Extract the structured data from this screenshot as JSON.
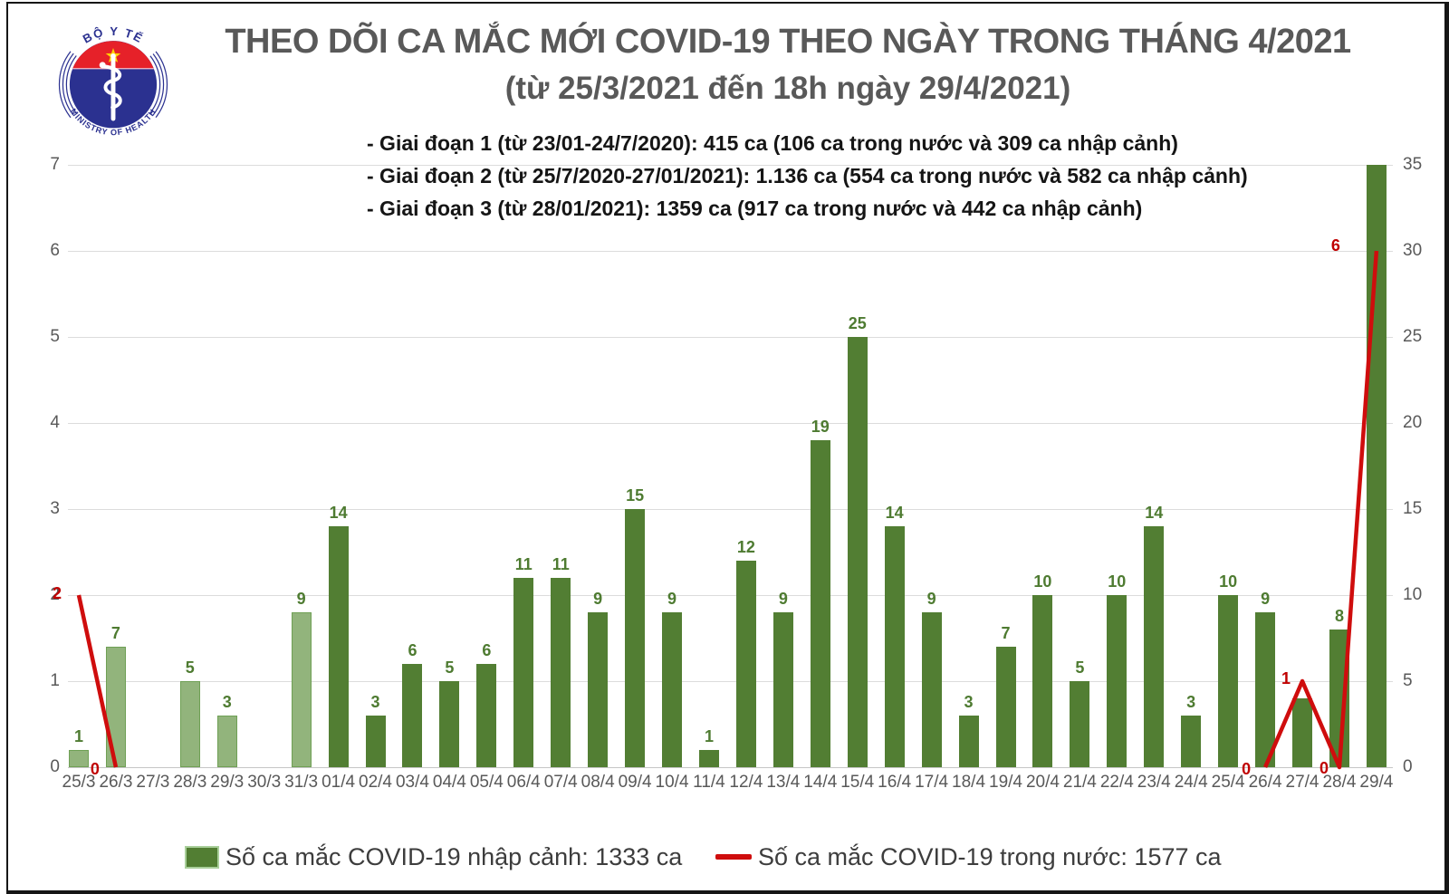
{
  "header": {
    "title": "THEO DÕI CA MẮC MỚI COVID-19 THEO NGÀY TRONG THÁNG 4/2021",
    "subtitle": "(từ 25/3/2021 đến 18h ngày 29/4/2021)",
    "logo": {
      "top_text": "BỘ Y TẾ",
      "bottom_text": "MINISTRY OF HEALTH"
    }
  },
  "annotations": [
    "- Giai đoạn 1 (từ 23/01-24/7/2020): 415 ca (106 ca trong nước và 309 ca nhập cảnh)",
    "- Giai đoạn 2 (từ 25/7/2020-27/01/2021): 1.136 ca (554 ca trong nước và 582 ca nhập cảnh)",
    "- Giai đoạn 3 (từ 28/01/2021): 1359 ca (917 ca trong nước và 442 ca nhập cảnh)"
  ],
  "legend": [
    {
      "label": "Số ca mắc COVID-19 nhập cảnh: 1333 ca",
      "marker": "bar",
      "color": "#527e33"
    },
    {
      "label": "Số ca mắc COVID-19 trong nước: 1577 ca",
      "marker": "line",
      "color": "#cf0d0d"
    }
  ],
  "chart_data": {
    "type": "bar+line",
    "title": "THEO DÕI CA MẮC MỚI COVID-19 THEO NGÀY TRONG THÁNG 4/2021",
    "categories": [
      "25/3",
      "26/3",
      "27/3",
      "28/3",
      "29/3",
      "30/3",
      "31/3",
      "01/4",
      "02/4",
      "03/4",
      "04/4",
      "05/4",
      "06/4",
      "07/4",
      "08/4",
      "09/4",
      "10/4",
      "11/4",
      "12/4",
      "13/4",
      "14/4",
      "15/4",
      "16/4",
      "17/4",
      "18/4",
      "19/4",
      "20/4",
      "21/4",
      "22/4",
      "23/4",
      "24/4",
      "25/4",
      "26/4",
      "27/4",
      "28/4",
      "29/4"
    ],
    "grid": true,
    "legend_position": "bottom",
    "left_axis": {
      "min": 0,
      "max": 7,
      "ticks": [
        "0",
        "1",
        "2",
        "3",
        "4",
        "5",
        "6",
        "7"
      ]
    },
    "right_axis": {
      "min": 0,
      "max": 35,
      "ticks": [
        "0",
        "5",
        "10",
        "15",
        "20",
        "25",
        "30",
        "35"
      ]
    },
    "series": [
      {
        "name": "Số ca mắc COVID-19 nhập cảnh",
        "type": "bar",
        "axis": "right",
        "color_dark": "#527e33",
        "color_light": "#92b47c",
        "light_count": 7,
        "values": [
          1,
          7,
          null,
          5,
          3,
          null,
          9,
          14,
          3,
          6,
          5,
          6,
          11,
          11,
          9,
          15,
          9,
          1,
          12,
          9,
          19,
          25,
          14,
          9,
          3,
          7,
          10,
          5,
          10,
          14,
          3,
          10,
          9,
          4,
          8,
          35
        ],
        "labels_hidden": [
          33,
          35
        ]
      },
      {
        "name": "Số ca mắc COVID-19 trong nước",
        "type": "line",
        "axis": "left",
        "color": "#cf0d0d",
        "values": [
          2,
          0,
          null,
          null,
          null,
          null,
          null,
          null,
          null,
          null,
          null,
          null,
          null,
          null,
          null,
          null,
          null,
          null,
          null,
          null,
          null,
          null,
          null,
          null,
          null,
          null,
          null,
          null,
          null,
          null,
          null,
          null,
          0,
          1,
          0,
          6
        ],
        "label_offsets": {
          "0": [
            -24,
            -2
          ],
          "1": [
            -23,
            2
          ],
          "32": [
            -21,
            2
          ],
          "33": [
            -18,
            -3
          ],
          "34": [
            -17,
            1
          ],
          "35": [
            -45,
            -6
          ]
        }
      }
    ]
  }
}
